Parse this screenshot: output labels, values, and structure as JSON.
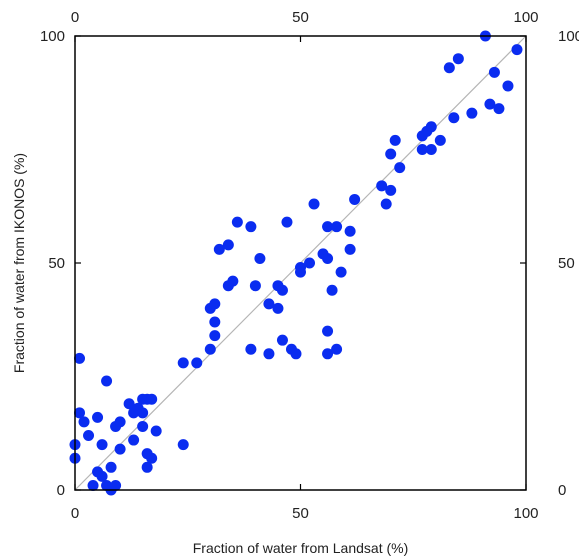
{
  "chart_data": {
    "type": "scatter",
    "title": "",
    "xlabel": "Fraction of water from Landsat (%)",
    "ylabel": "Fraction of water from IKONOS (%)",
    "xlim": [
      0,
      100
    ],
    "ylim": [
      0,
      100
    ],
    "xticks": [
      0,
      50,
      100
    ],
    "yticks": [
      0,
      50,
      100
    ],
    "tick_labels_on": [
      "bottom",
      "top",
      "left",
      "right"
    ],
    "grid": false,
    "reference_line": "1:1",
    "colors": {
      "points": "#0a2cf0",
      "reference_line": "#b5b5b5",
      "frame": "#000000"
    },
    "series": [
      {
        "points": [
          [
            0,
            10
          ],
          [
            0,
            7
          ],
          [
            1,
            29
          ],
          [
            1,
            17
          ],
          [
            2,
            15
          ],
          [
            3,
            12
          ],
          [
            4,
            1
          ],
          [
            5,
            4
          ],
          [
            5,
            16
          ],
          [
            6,
            10
          ],
          [
            6,
            3
          ],
          [
            7,
            24
          ],
          [
            7,
            1
          ],
          [
            8,
            0
          ],
          [
            8,
            5
          ],
          [
            9,
            1
          ],
          [
            9,
            14
          ],
          [
            10,
            9
          ],
          [
            10,
            15
          ],
          [
            12,
            19
          ],
          [
            13,
            11
          ],
          [
            13,
            17
          ],
          [
            14,
            18
          ],
          [
            15,
            17
          ],
          [
            15,
            14
          ],
          [
            15,
            20
          ],
          [
            16,
            5
          ],
          [
            16,
            8
          ],
          [
            16,
            20
          ],
          [
            17,
            7
          ],
          [
            17,
            20
          ],
          [
            18,
            13
          ],
          [
            24,
            28
          ],
          [
            24,
            10
          ],
          [
            27,
            28
          ],
          [
            30,
            31
          ],
          [
            30,
            40
          ],
          [
            31,
            41
          ],
          [
            31,
            34
          ],
          [
            31,
            37
          ],
          [
            32,
            53
          ],
          [
            34,
            54
          ],
          [
            34,
            45
          ],
          [
            35,
            46
          ],
          [
            36,
            59
          ],
          [
            39,
            58
          ],
          [
            39,
            31
          ],
          [
            40,
            45
          ],
          [
            41,
            51
          ],
          [
            43,
            30
          ],
          [
            43,
            41
          ],
          [
            45,
            45
          ],
          [
            45,
            40
          ],
          [
            46,
            44
          ],
          [
            46,
            33
          ],
          [
            47,
            59
          ],
          [
            48,
            31
          ],
          [
            49,
            30
          ],
          [
            50,
            48
          ],
          [
            50,
            49
          ],
          [
            52,
            50
          ],
          [
            53,
            63
          ],
          [
            55,
            52
          ],
          [
            56,
            51
          ],
          [
            56,
            58
          ],
          [
            56,
            30
          ],
          [
            56,
            35
          ],
          [
            57,
            44
          ],
          [
            58,
            58
          ],
          [
            58,
            31
          ],
          [
            59,
            48
          ],
          [
            61,
            57
          ],
          [
            61,
            53
          ],
          [
            62,
            64
          ],
          [
            68,
            67
          ],
          [
            69,
            63
          ],
          [
            70,
            66
          ],
          [
            70,
            74
          ],
          [
            71,
            77
          ],
          [
            72,
            71
          ],
          [
            77,
            75
          ],
          [
            77,
            78
          ],
          [
            78,
            79
          ],
          [
            79,
            80
          ],
          [
            79,
            75
          ],
          [
            81,
            77
          ],
          [
            83,
            93
          ],
          [
            84,
            82
          ],
          [
            85,
            95
          ],
          [
            88,
            83
          ],
          [
            91,
            100
          ],
          [
            92,
            85
          ],
          [
            93,
            92
          ],
          [
            94,
            84
          ],
          [
            96,
            89
          ],
          [
            98,
            97
          ]
        ]
      }
    ]
  }
}
